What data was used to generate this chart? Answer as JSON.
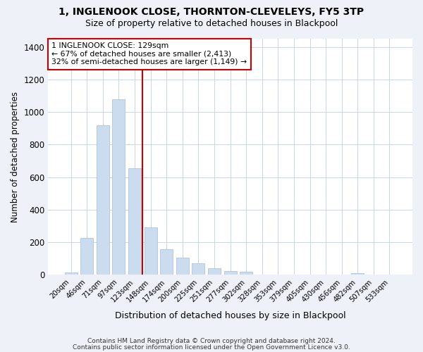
{
  "title": "1, INGLENOOK CLOSE, THORNTON-CLEVELEYS, FY5 3TP",
  "subtitle": "Size of property relative to detached houses in Blackpool",
  "xlabel": "Distribution of detached houses by size in Blackpool",
  "ylabel": "Number of detached properties",
  "bar_color": "#ccdcef",
  "bar_edge_color": "#adc4de",
  "annotation_line_color": "#cc0000",
  "annotation_box_text": "1 INGLENOOK CLOSE: 129sqm\n← 67% of detached houses are smaller (2,413)\n32% of semi-detached houses are larger (1,149) →",
  "categories": [
    "20sqm",
    "46sqm",
    "71sqm",
    "97sqm",
    "123sqm",
    "148sqm",
    "174sqm",
    "200sqm",
    "225sqm",
    "251sqm",
    "277sqm",
    "302sqm",
    "328sqm",
    "353sqm",
    "379sqm",
    "405sqm",
    "430sqm",
    "456sqm",
    "482sqm",
    "507sqm",
    "533sqm"
  ],
  "values": [
    15,
    228,
    918,
    1080,
    655,
    292,
    158,
    107,
    70,
    40,
    22,
    18,
    0,
    0,
    0,
    0,
    0,
    0,
    12,
    0,
    0
  ],
  "ylim": [
    0,
    1450
  ],
  "yticks": [
    0,
    200,
    400,
    600,
    800,
    1000,
    1200,
    1400
  ],
  "footer1": "Contains HM Land Registry data © Crown copyright and database right 2024.",
  "footer2": "Contains public sector information licensed under the Open Government Licence v3.0.",
  "background_color": "#eef2f8",
  "plot_background_color": "#ffffff",
  "grid_color": "#c8d4e8"
}
